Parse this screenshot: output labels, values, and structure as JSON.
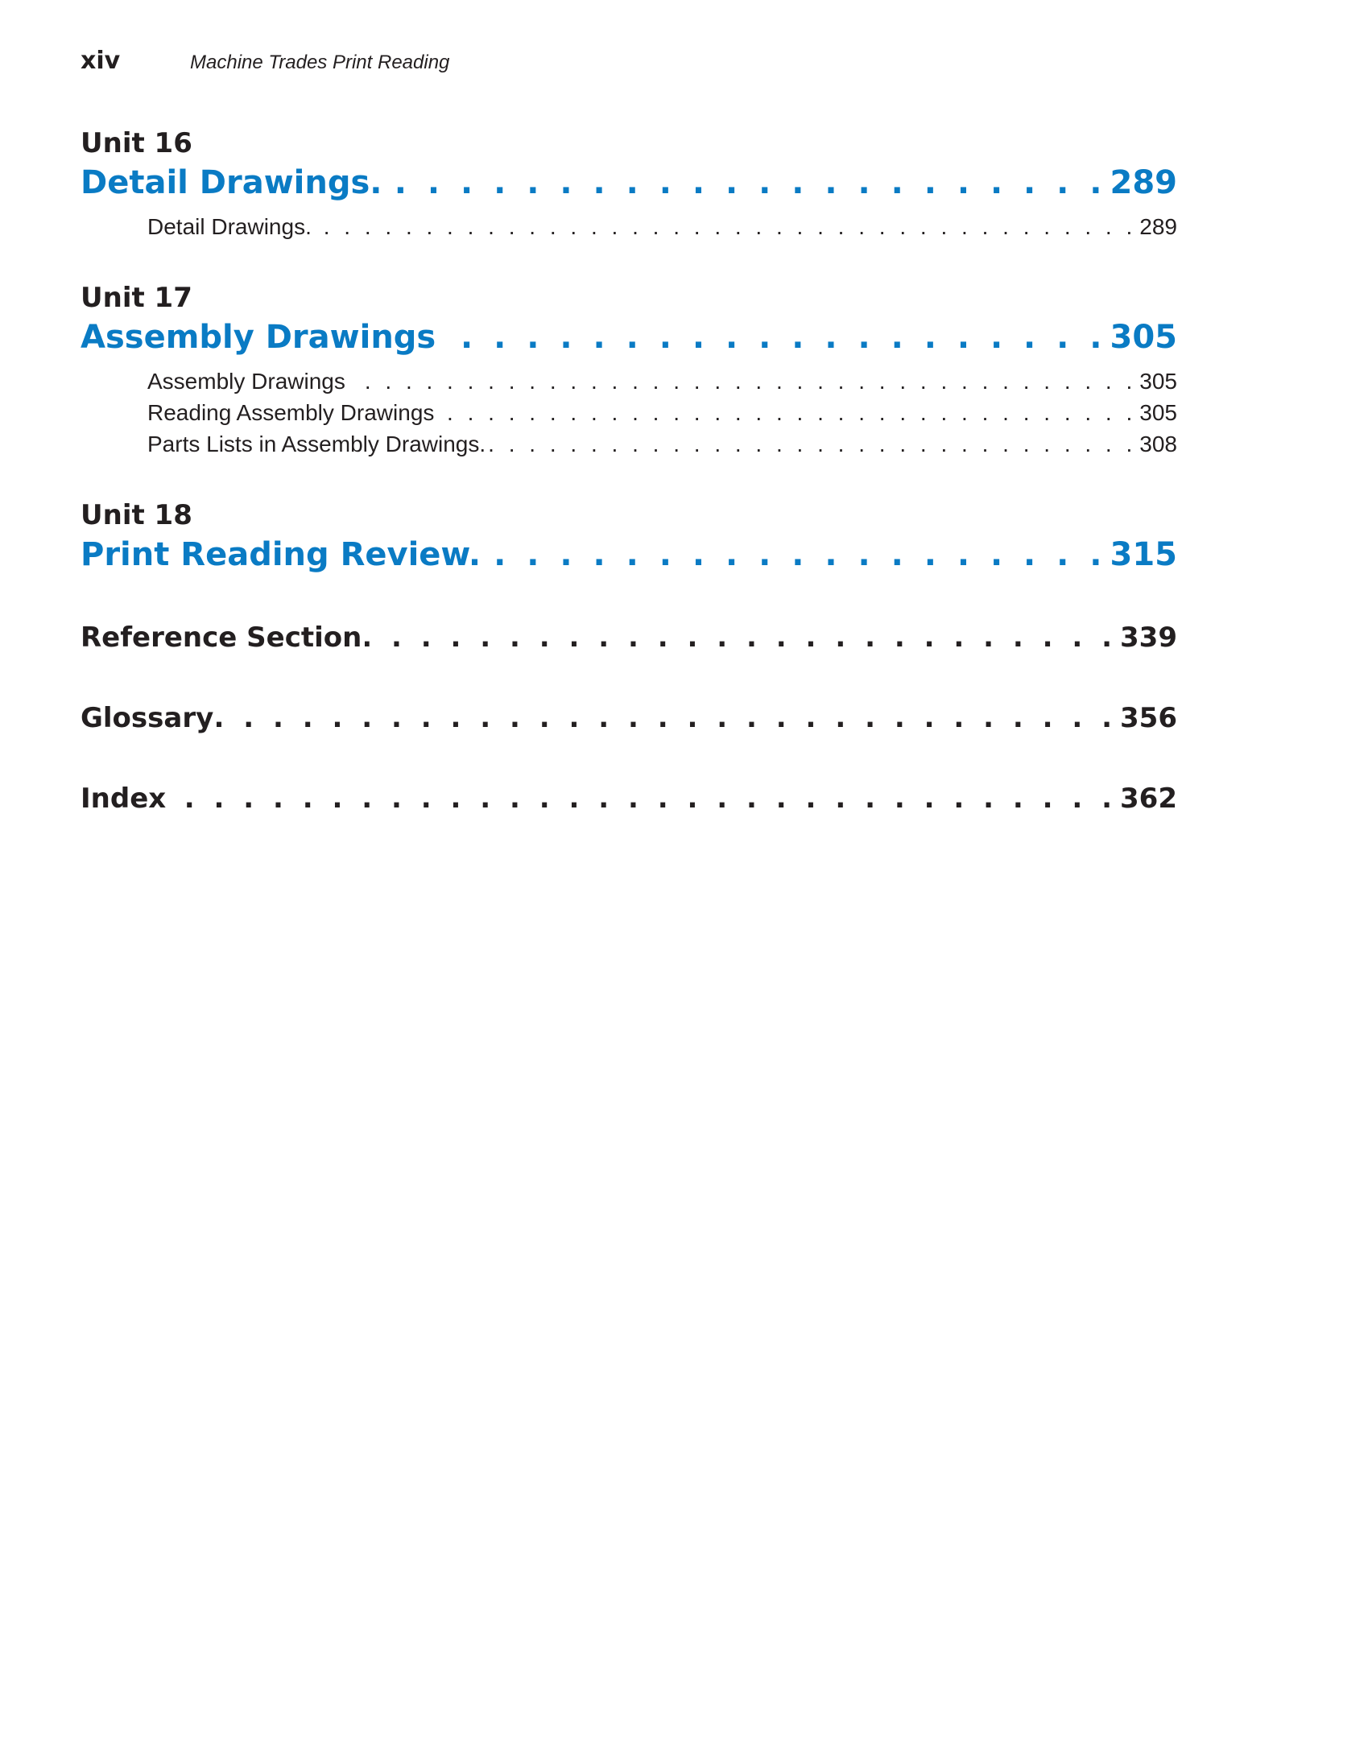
{
  "header": {
    "folio": "xiv",
    "running_title": "Machine Trades Print Reading"
  },
  "colors": {
    "chapter": "#0a7bc4",
    "text": "#231f20"
  },
  "units": [
    {
      "unit": "Unit 16",
      "title": "Detail Drawings.",
      "page": "289",
      "sections": [
        {
          "title": "Detail Drawings.",
          "page": "289"
        }
      ]
    },
    {
      "unit": "Unit 17",
      "title": "Assembly Drawings",
      "page": "305",
      "sections": [
        {
          "title": "Assembly Drawings",
          "page": "305"
        },
        {
          "title": "Reading Assembly Drawings",
          "page": "305"
        },
        {
          "title": "Parts Lists in Assembly Drawings.",
          "page": "308"
        }
      ]
    },
    {
      "unit": "Unit 18",
      "title": "Print Reading Review.",
      "page": "315",
      "sections": []
    }
  ],
  "back_matter": [
    {
      "title": "Reference Section",
      "page": "339"
    },
    {
      "title": "Glossary",
      "page": "356"
    },
    {
      "title": "Index",
      "page": "362"
    }
  ]
}
